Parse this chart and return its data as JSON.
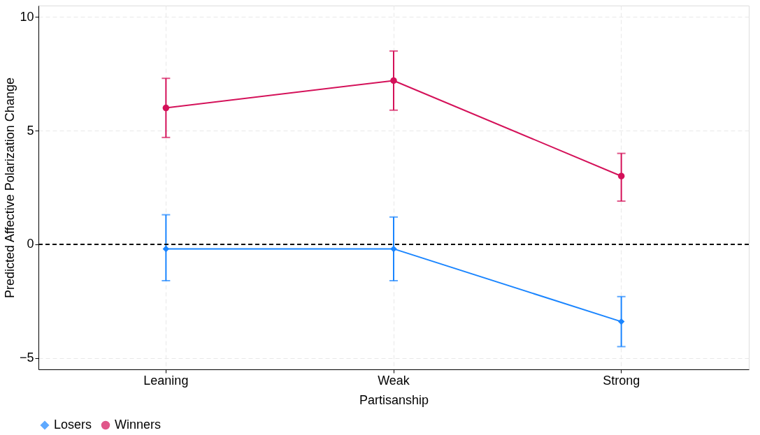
{
  "chart_data": {
    "type": "line",
    "xlabel": "Partisanship",
    "ylabel": "Predicted Affective Polarization Change",
    "categories": [
      "Leaning",
      "Weak",
      "Strong"
    ],
    "series": [
      {
        "name": "Losers",
        "color": "#1a85ff",
        "marker": "diamond",
        "values": [
          -0.2,
          -0.2,
          -3.4
        ],
        "errors": [
          [
            -1.6,
            1.3
          ],
          [
            -1.6,
            1.2
          ],
          [
            -4.5,
            -2.3
          ]
        ]
      },
      {
        "name": "Winners",
        "color": "#d41159",
        "marker": "circle",
        "values": [
          6.0,
          7.2,
          3.0
        ],
        "errors": [
          [
            4.7,
            7.3
          ],
          [
            5.9,
            8.5
          ],
          [
            1.9,
            4.0
          ]
        ]
      }
    ],
    "ylim": [
      -5.5,
      10.5
    ],
    "yticks": [
      -5,
      0,
      5,
      10
    ],
    "grid": true,
    "legend": "bottom",
    "ref_lines": [
      {
        "axis": "y",
        "value": 0,
        "color": "#000000",
        "line_style": "dashed"
      }
    ]
  }
}
